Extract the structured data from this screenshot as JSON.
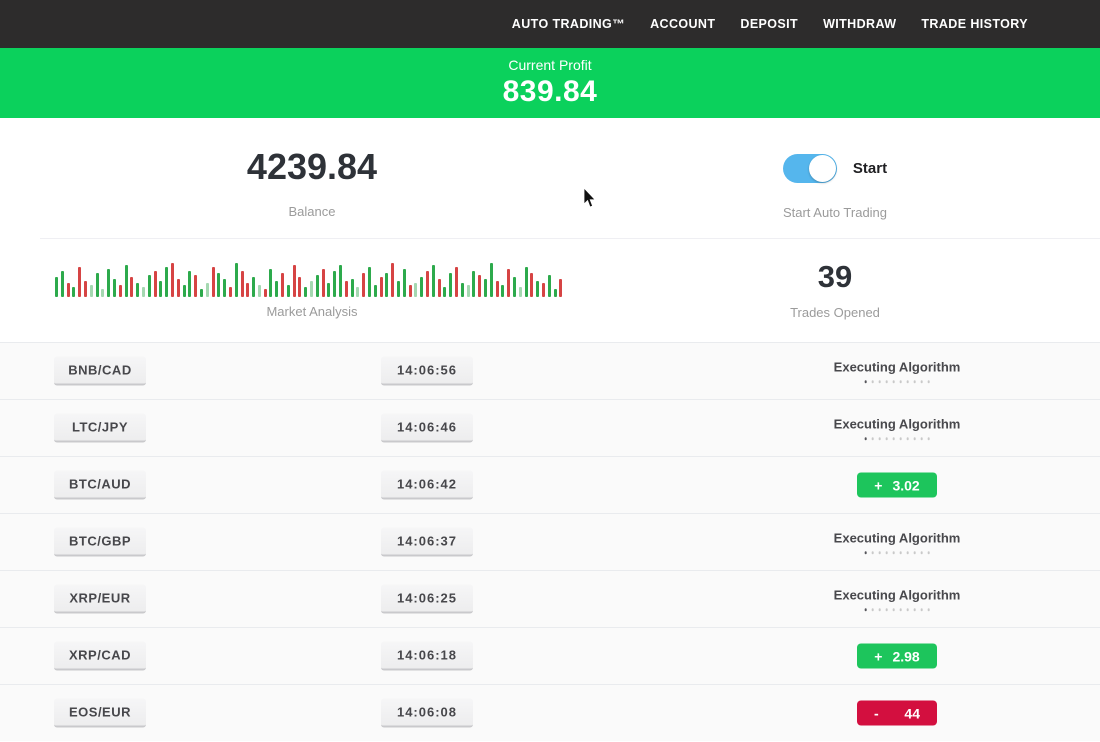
{
  "nav": {
    "items": [
      "AUTO TRADING™",
      "ACCOUNT",
      "DEPOSIT",
      "WITHDRAW",
      "TRADE HISTORY"
    ]
  },
  "profit_banner": {
    "label": "Current Profit",
    "value": "839.84",
    "bg": "#0bd15c"
  },
  "stats": {
    "balance": {
      "value": "4239.84",
      "label": "Balance"
    },
    "auto_trading": {
      "toggle_label": "Start",
      "label": "Start Auto Trading",
      "state": "on",
      "toggle_color": "#55b6ed"
    },
    "trades": {
      "value": "39",
      "label": "Trades Opened"
    }
  },
  "chart_data": {
    "type": "bar",
    "title": "Market Analysis",
    "ylabel": "",
    "xlabel": "",
    "legend": false,
    "note": "dense tick strip of green/red market bars, heights in px (max 42), g=green r=red G=light-green R=light-red",
    "colors": {
      "g": "#2daa4c",
      "r": "#d64444",
      "G": "#a5d8b1",
      "R": "#ecacac"
    },
    "bars": [
      "g20",
      "g26",
      "r14",
      "g10",
      "r30",
      "r16",
      "G12",
      "g24",
      "G8",
      "g28",
      "g18",
      "r12",
      "g32",
      "r20",
      "g14",
      "G10",
      "g22",
      "r26",
      "g16",
      "g30",
      "r34",
      "r18",
      "g12",
      "g26",
      "r22",
      "g8",
      "G14",
      "r30",
      "g24",
      "g18",
      "r10",
      "g34",
      "r26",
      "r14",
      "g20",
      "G12",
      "r8",
      "g28",
      "g16",
      "r24",
      "g12",
      "r32",
      "r20",
      "g10",
      "G16",
      "g22",
      "r28",
      "g14",
      "g26",
      "g32",
      "r16",
      "g18",
      "G10",
      "r24",
      "g30",
      "g12",
      "r20",
      "g24",
      "r34",
      "g16",
      "g28",
      "r12",
      "G14",
      "g20",
      "r26",
      "g32",
      "r18",
      "g10",
      "g24",
      "r30",
      "g14",
      "G12",
      "g26",
      "r22",
      "g18",
      "g34",
      "r16",
      "g12",
      "r28",
      "g20",
      "G10",
      "g30",
      "r24",
      "g16",
      "r14",
      "g22",
      "g8",
      "r18"
    ]
  },
  "trades_table": {
    "executing_text": "Executing Algorithm",
    "badge_colors": {
      "profit": "#1dc55c",
      "loss": "#d30f3f"
    },
    "rows": [
      {
        "pair": "BNB/CAD",
        "time": "14:06:56",
        "status": "executing"
      },
      {
        "pair": "LTC/JPY",
        "time": "14:06:46",
        "status": "executing"
      },
      {
        "pair": "BTC/AUD",
        "time": "14:06:42",
        "status": "profit",
        "sign": "+",
        "value": "3.02"
      },
      {
        "pair": "BTC/GBP",
        "time": "14:06:37",
        "status": "executing"
      },
      {
        "pair": "XRP/EUR",
        "time": "14:06:25",
        "status": "executing"
      },
      {
        "pair": "XRP/CAD",
        "time": "14:06:18",
        "status": "profit",
        "sign": "+",
        "value": "2.98"
      },
      {
        "pair": "EOS/EUR",
        "time": "14:06:08",
        "status": "loss",
        "sign": "-",
        "value": "44"
      }
    ]
  }
}
